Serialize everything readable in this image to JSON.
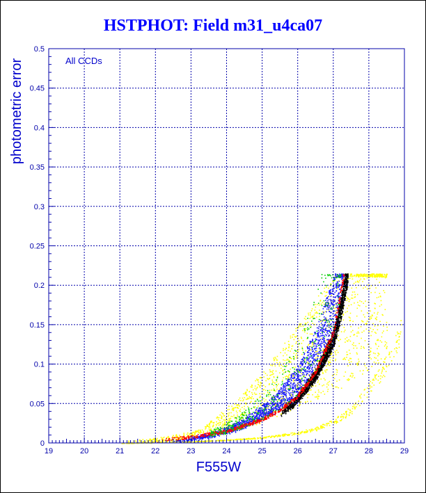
{
  "chart_data": {
    "type": "scatter",
    "title": "HSTPHOT: Field m31_u4ca07",
    "xlabel": "F555W",
    "ylabel": "photometric error",
    "annotation": "All CCDs",
    "xlim": [
      19,
      29
    ],
    "ylim": [
      0,
      0.5
    ],
    "x_ticks": [
      "19",
      "20",
      "21",
      "22",
      "23",
      "24",
      "25",
      "26",
      "27",
      "28",
      "29"
    ],
    "y_ticks": [
      "0",
      "0.05",
      "0.1",
      "0.15",
      "0.2",
      "0.25",
      "0.3",
      "0.35",
      "0.4",
      "0.45",
      "0.5"
    ],
    "grid": true,
    "error_cap": 0.215,
    "colors": {
      "frame": "#0000aa",
      "grid": "#0000aa",
      "yellow": "#ffff00",
      "blue": "#1818ff",
      "green": "#00cc00",
      "black": "#000000",
      "red": "#ff0000"
    },
    "series": [
      {
        "color": "yellow",
        "envelope": [
          [
            21.0,
            0.0
          ],
          [
            22.0,
            0.003
          ],
          [
            22.5,
            0.005
          ],
          [
            23.0,
            0.008
          ],
          [
            23.5,
            0.014
          ],
          [
            24.0,
            0.024
          ],
          [
            24.5,
            0.036
          ],
          [
            25.0,
            0.05
          ],
          [
            25.5,
            0.065
          ],
          [
            26.0,
            0.082
          ],
          [
            26.5,
            0.1
          ],
          [
            27.0,
            0.12
          ],
          [
            27.5,
            0.14
          ],
          [
            28.0,
            0.165
          ],
          [
            28.5,
            0.19
          ]
        ]
      },
      {
        "color": "blue",
        "envelope": [
          [
            22.5,
            0.002
          ],
          [
            23.0,
            0.005
          ],
          [
            23.5,
            0.009
          ],
          [
            24.0,
            0.015
          ],
          [
            24.5,
            0.024
          ],
          [
            25.0,
            0.036
          ],
          [
            25.5,
            0.052
          ],
          [
            26.0,
            0.075
          ],
          [
            26.5,
            0.11
          ],
          [
            27.0,
            0.16
          ],
          [
            27.2,
            0.2
          ],
          [
            27.3,
            0.215
          ]
        ]
      },
      {
        "color": "black",
        "envelope": [
          [
            25.5,
            0.035
          ],
          [
            26.0,
            0.055
          ],
          [
            26.5,
            0.085
          ],
          [
            27.0,
            0.13
          ],
          [
            27.2,
            0.165
          ],
          [
            27.4,
            0.215
          ]
        ]
      },
      {
        "color": "red",
        "envelope": [
          [
            22.0,
            0.003
          ],
          [
            23.0,
            0.008
          ],
          [
            24.0,
            0.015
          ],
          [
            25.0,
            0.03
          ],
          [
            25.5,
            0.042
          ],
          [
            26.0,
            0.06
          ],
          [
            26.5,
            0.09
          ],
          [
            27.0,
            0.14
          ],
          [
            27.2,
            0.19
          ],
          [
            27.3,
            0.215
          ]
        ]
      },
      {
        "color": "yellow",
        "envelope": [
          [
            21.0,
            0.0
          ],
          [
            22.0,
            0.001
          ],
          [
            23.0,
            0.002
          ],
          [
            24.0,
            0.004
          ],
          [
            25.0,
            0.007
          ],
          [
            26.0,
            0.013
          ],
          [
            26.5,
            0.018
          ],
          [
            27.0,
            0.027
          ],
          [
            27.5,
            0.042
          ],
          [
            28.0,
            0.068
          ],
          [
            28.5,
            0.1
          ],
          [
            28.9,
            0.14
          ]
        ]
      }
    ]
  }
}
